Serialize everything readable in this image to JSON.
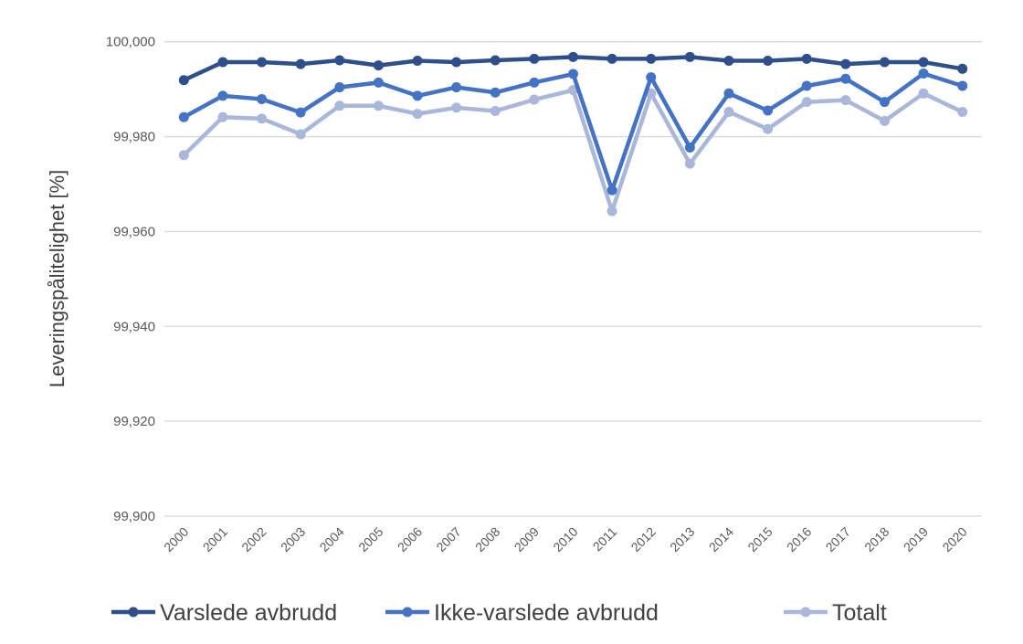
{
  "chart_data": {
    "type": "line",
    "title": "",
    "xlabel": "",
    "ylabel": "Leveringspålitelighet [%]",
    "ylim": [
      99.9,
      100.0
    ],
    "yticks": [
      99.9,
      99.92,
      99.94,
      99.96,
      99.98,
      100.0
    ],
    "ytick_labels": [
      "99,900",
      "99,920",
      "99,940",
      "99,960",
      "99,980",
      "100,000"
    ],
    "grid": true,
    "legend_position": "bottom",
    "categories": [
      "2000",
      "2001",
      "2002",
      "2003",
      "2004",
      "2005",
      "2006",
      "2007",
      "2008",
      "2009",
      "2010",
      "2011",
      "2012",
      "2013",
      "2014",
      "2015",
      "2016",
      "2017",
      "2018",
      "2019",
      "2020"
    ],
    "series": [
      {
        "name": "Varslede avbrudd",
        "color": "#2f4f8c",
        "values": [
          99.9919,
          99.9957,
          99.9957,
          99.9953,
          99.9961,
          99.995,
          99.996,
          99.9957,
          99.9961,
          99.9964,
          99.9968,
          99.9964,
          99.9964,
          99.9968,
          99.996,
          99.996,
          99.9964,
          99.9953,
          99.9957,
          99.9957,
          99.9943
        ]
      },
      {
        "name": "Ikke-varslede avbrudd",
        "color": "#4472c4",
        "values": [
          99.9841,
          99.9886,
          99.9879,
          99.9851,
          99.9904,
          99.9914,
          99.9886,
          99.9904,
          99.9893,
          99.9914,
          99.9932,
          99.9687,
          99.9925,
          99.9777,
          99.9891,
          99.9855,
          99.9907,
          99.9922,
          99.9873,
          99.9933,
          99.9907
        ]
      },
      {
        "name": "Totalt",
        "color": "#a9b7da",
        "values": [
          99.9761,
          99.9841,
          99.9838,
          99.9805,
          99.9865,
          99.9865,
          99.9848,
          99.9861,
          99.9854,
          99.9878,
          99.9898,
          99.9643,
          99.9891,
          99.9743,
          99.9852,
          99.9816,
          99.9873,
          99.9877,
          99.9833,
          99.9891,
          99.9852
        ]
      }
    ]
  }
}
